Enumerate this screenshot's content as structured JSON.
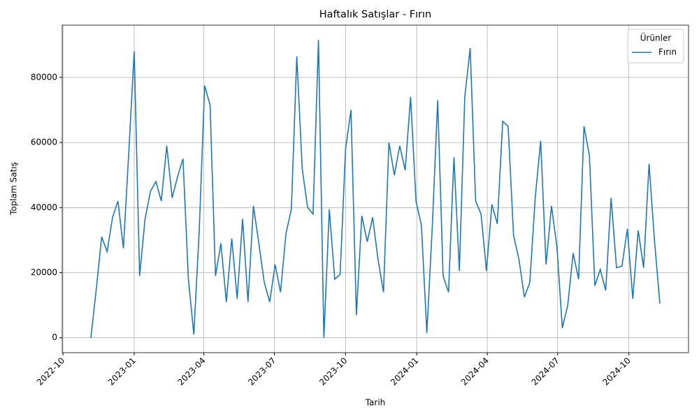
{
  "chart_data": {
    "type": "line",
    "title": "Haftalık Satışlar - Fırın",
    "xlabel": "Tarih",
    "ylabel": "Toplam Satış",
    "legend_title": "Ürünler",
    "legend": "upper right",
    "grid": true,
    "x": [
      "2022-11-06",
      "2022-11-13",
      "2022-11-20",
      "2022-11-27",
      "2022-12-04",
      "2022-12-11",
      "2022-12-18",
      "2022-12-25",
      "2023-01-01",
      "2023-01-08",
      "2023-01-15",
      "2023-01-22",
      "2023-01-29",
      "2023-02-05",
      "2023-02-12",
      "2023-02-19",
      "2023-02-26",
      "2023-03-05",
      "2023-03-12",
      "2023-03-19",
      "2023-03-26",
      "2023-04-02",
      "2023-04-09",
      "2023-04-16",
      "2023-04-23",
      "2023-04-30",
      "2023-05-07",
      "2023-05-14",
      "2023-05-21",
      "2023-05-28",
      "2023-06-04",
      "2023-06-11",
      "2023-06-18",
      "2023-06-25",
      "2023-07-02",
      "2023-07-09",
      "2023-07-16",
      "2023-07-23",
      "2023-07-30",
      "2023-08-06",
      "2023-08-13",
      "2023-08-20",
      "2023-08-27",
      "2023-09-03",
      "2023-09-10",
      "2023-09-17",
      "2023-09-24",
      "2023-10-01",
      "2023-10-08",
      "2023-10-15",
      "2023-10-22",
      "2023-10-29",
      "2023-11-05",
      "2023-11-12",
      "2023-11-19",
      "2023-11-26",
      "2023-12-03",
      "2023-12-10",
      "2023-12-17",
      "2023-12-24",
      "2023-12-31",
      "2024-01-07",
      "2024-01-14",
      "2024-01-21",
      "2024-01-28",
      "2024-02-04",
      "2024-02-11",
      "2024-02-18",
      "2024-02-25",
      "2024-03-03",
      "2024-03-10",
      "2024-03-17",
      "2024-03-24",
      "2024-03-31",
      "2024-04-07",
      "2024-04-14",
      "2024-04-21",
      "2024-04-28",
      "2024-05-05",
      "2024-05-12",
      "2024-05-19",
      "2024-05-26",
      "2024-06-02",
      "2024-06-09",
      "2024-06-16",
      "2024-06-23",
      "2024-06-30",
      "2024-07-07",
      "2024-07-14",
      "2024-07-21",
      "2024-07-28",
      "2024-08-04",
      "2024-08-11",
      "2024-08-18",
      "2024-08-25",
      "2024-09-01",
      "2024-09-08",
      "2024-09-15",
      "2024-09-22",
      "2024-09-29",
      "2024-10-06",
      "2024-10-13",
      "2024-10-20",
      "2024-10-27",
      "2024-11-03",
      "2024-11-10"
    ],
    "series": [
      {
        "name": "Fırın",
        "color": "#1f77b4",
        "values": [
          0,
          15000,
          31000,
          26500,
          37000,
          42000,
          27500,
          57000,
          88000,
          19000,
          36500,
          45000,
          48000,
          42000,
          59000,
          43000,
          49500,
          55000,
          18000,
          1000,
          33000,
          77500,
          71500,
          19000,
          29000,
          11000,
          30500,
          12000,
          36500,
          11000,
          40500,
          29000,
          17000,
          11000,
          22500,
          14000,
          32000,
          39500,
          86500,
          52000,
          40000,
          38000,
          91500,
          0,
          39500,
          18000,
          19500,
          58000,
          70000,
          7000,
          37500,
          29500,
          37000,
          24000,
          14000,
          60000,
          50000,
          59000,
          51500,
          74000,
          42000,
          34500,
          1500,
          34000,
          73000,
          19000,
          14000,
          55500,
          20500,
          74000,
          89000,
          42000,
          38000,
          20500,
          41000,
          35000,
          66500,
          65000,
          31500,
          24000,
          12500,
          17000,
          43000,
          60500,
          22500,
          40500,
          28000,
          3000,
          10000,
          26000,
          18000,
          65000,
          56000,
          16000,
          21000,
          14500,
          43000,
          21500,
          22000,
          33500,
          12000,
          33000,
          21500,
          53500,
          30000,
          10500
        ]
      }
    ],
    "xlim": [
      "2022-09-30",
      "2024-12-17"
    ],
    "xticks": [
      "2022-10",
      "2023-01",
      "2023-04",
      "2023-07",
      "2023-10",
      "2024-01",
      "2024-04",
      "2024-07",
      "2024-10"
    ],
    "ylim": [
      -4575,
      96075
    ],
    "yticks": [
      0,
      20000,
      40000,
      60000,
      80000
    ]
  }
}
